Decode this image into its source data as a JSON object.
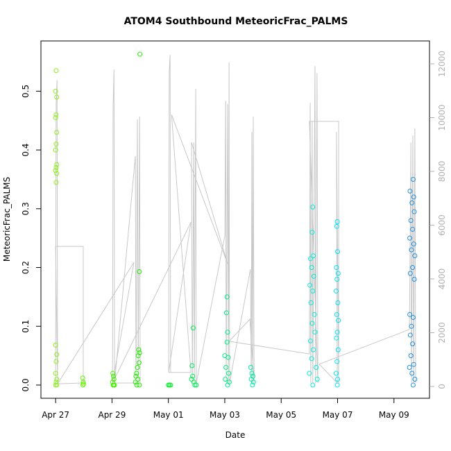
{
  "chart_data": {
    "type": "scatter",
    "title": "ATOM4 Southbound MeteoricFrac_PALMS",
    "x_label": "Date",
    "y_label": "MeteoricFrac_PALMS",
    "xlim": [
      116.48,
      130.26
    ],
    "xticks": [
      {
        "value": 117,
        "label": "Apr 27"
      },
      {
        "value": 119,
        "label": "Apr 29"
      },
      {
        "value": 121,
        "label": "May 01"
      },
      {
        "value": 123,
        "label": "May 03"
      },
      {
        "value": 125,
        "label": "May 05"
      },
      {
        "value": 127,
        "label": "May 07"
      },
      {
        "value": 129,
        "label": "May 09"
      }
    ],
    "ylim": [
      -0.0225,
      0.5855
    ],
    "yticks": [
      {
        "value": 0,
        "label": "0.0"
      },
      0.1,
      0.2,
      0.3,
      0.4,
      0.5
    ],
    "y2lim": [
      -439,
      12852
    ],
    "y2ticks": [
      0,
      2000,
      4000,
      6000,
      8000,
      10000,
      12000
    ],
    "series": [
      {
        "type": "line",
        "axis": "y2",
        "color": "#c8c8c8",
        "x": [
          117.0,
          117.02,
          117.05,
          117.07,
          117.0,
          117.98,
          117.98,
          117.07,
          119.78,
          119.02,
          119.04,
          119.07,
          119.09,
          119.83,
          119.85,
          119.9,
          119.93,
          119.98,
          120.0,
          119.02,
          121.8,
          121.01,
          121.03,
          121.06,
          121.08,
          121.01,
          121.8,
          121.11,
          123.1,
          121.82,
          121.85,
          121.9,
          121.92,
          121.97,
          121.99,
          123.0,
          123.03,
          123.05,
          123.1,
          123.13,
          123.15,
          123.17,
          123.91,
          123.94,
          123.96,
          123.99,
          124.01,
          124.04,
          123.89,
          123.15,
          126.0,
          126.03,
          126.05,
          126.1,
          126.12,
          126.2,
          126.22,
          126.27,
          126.3,
          126.0,
          127.04,
          127.04,
          126.96,
          126.99,
          126.35,
          129.55,
          129.6,
          129.62,
          129.67,
          129.7,
          129.74,
          129.77
        ],
        "values": [
          0,
          10500,
          11400,
          0,
          5210,
          5210,
          130,
          100,
          4620,
          130,
          10420,
          11790,
          130,
          8570,
          130,
          9940,
          130,
          10040,
          130,
          130,
          6110,
          520,
          11710,
          12330,
          520,
          520,
          520,
          10110,
          4570,
          9080,
          130,
          9080,
          130,
          11070,
          130,
          5600,
          10630,
          130,
          10500,
          130,
          12050,
          130,
          4360,
          130,
          9470,
          130,
          10040,
          130,
          2500,
          1680,
          1210,
          10550,
          130,
          9860,
          130,
          11920,
          130,
          11660,
          130,
          9860,
          9860,
          130,
          9470,
          130,
          830,
          2120,
          9080,
          130,
          9340,
          130,
          9600,
          130
        ]
      },
      {
        "type": "scatter",
        "color": "#8fee1f",
        "x": [
          117.02,
          117.0,
          117.04,
          117.02,
          117.0,
          117.04,
          117.02,
          117.0,
          117.04,
          117.02,
          117.0,
          117.04,
          117.02,
          117.0,
          117.04,
          117.02,
          117.0,
          117.04,
          117.02,
          117.0,
          117.04
        ],
        "values": [
          0.535,
          0.5,
          0.49,
          0.46,
          0.455,
          0.43,
          0.41,
          0.4,
          0.375,
          0.37,
          0.365,
          0.36,
          0.345,
          0.068,
          0.052,
          0.04,
          0.02,
          0.01,
          0.005,
          0,
          0
        ]
      },
      {
        "type": "scatter",
        "color": "#66f000",
        "x": [
          117.96,
          117.98,
          117.97,
          117.99
        ],
        "values": [
          0.012,
          0.005,
          0,
          0.002
        ]
      },
      {
        "type": "scatter",
        "color": "#44f000",
        "x": [
          119.03,
          119.05,
          119.07,
          119.02,
          119.04,
          119.06,
          119.09
        ],
        "values": [
          0.02,
          0.015,
          0.01,
          0.005,
          0,
          0,
          0
        ]
      },
      {
        "type": "scatter",
        "color": "#22ee00",
        "x": [
          119.99,
          119.97,
          119.95,
          119.98,
          119.93,
          119.96,
          119.9,
          119.87,
          119.85,
          119.92,
          119.83,
          119.88,
          119.97
        ],
        "values": [
          0.563,
          0.193,
          0.06,
          0.055,
          0.05,
          0.038,
          0.03,
          0.02,
          0.015,
          0.01,
          0.005,
          0,
          0
        ]
      },
      {
        "type": "scatter",
        "color": "#00ee22",
        "x": [
          121.0,
          121.04,
          121.08
        ],
        "values": [
          0,
          0,
          0
        ]
      },
      {
        "type": "scatter",
        "color": "#00ee55",
        "x": [
          121.88,
          121.84,
          121.86,
          121.82,
          121.9,
          121.94,
          121.99
        ],
        "values": [
          0.097,
          0.033,
          0.015,
          0.01,
          0.005,
          0,
          0
        ]
      },
      {
        "type": "scatter",
        "color": "#00ee88",
        "x": [
          123.08,
          123.06,
          123.1,
          123.08,
          123.0,
          123.12,
          123.04,
          123.14,
          123.02,
          123.16,
          123.1
        ],
        "values": [
          0.15,
          0.123,
          0.09,
          0.073,
          0.05,
          0.047,
          0.03,
          0.02,
          0.01,
          0.005,
          0
        ]
      },
      {
        "type": "scatter",
        "color": "#00eeaa",
        "x": [
          123.92,
          123.96,
          124.0,
          123.94,
          124.02,
          123.98
        ],
        "values": [
          0.03,
          0.02,
          0.015,
          0.01,
          0.005,
          0
        ]
      },
      {
        "type": "scatter",
        "color": "#00eedd",
        "x": [
          126.12,
          126.1,
          126.14,
          126.04,
          126.08,
          126.16,
          126.02,
          126.12,
          126.06,
          126.18,
          126.1,
          126.2,
          126.04,
          126.14,
          126.08,
          126.24,
          126.0,
          126.28,
          126.12
        ],
        "values": [
          0.303,
          0.26,
          0.22,
          0.215,
          0.2,
          0.185,
          0.17,
          0.16,
          0.14,
          0.12,
          0.105,
          0.09,
          0.075,
          0.06,
          0.045,
          0.03,
          0.02,
          0.01,
          0
        ]
      },
      {
        "type": "scatter",
        "color": "#00e5f5",
        "x": [
          126.99,
          126.97,
          127.0,
          126.96,
          127.02,
          126.98,
          126.95,
          127.01,
          126.97,
          127.03,
          126.99,
          126.96,
          127.02,
          126.98,
          126.95,
          127.0,
          126.99
        ],
        "values": [
          0.278,
          0.27,
          0.227,
          0.2,
          0.19,
          0.18,
          0.16,
          0.14,
          0.12,
          0.11,
          0.09,
          0.08,
          0.06,
          0.04,
          0.02,
          0.01,
          0
        ]
      },
      {
        "type": "scatter",
        "color": "#2090e0",
        "x": [
          129.68,
          129.57,
          129.7,
          129.64,
          129.72,
          129.6,
          129.66,
          129.56,
          129.7,
          129.62,
          129.74,
          129.66,
          129.58,
          129.72,
          129.56,
          129.68,
          129.62,
          129.58,
          129.66,
          129.6,
          129.7,
          129.55,
          129.64,
          129.74,
          129.68
        ],
        "values": [
          0.35,
          0.33,
          0.32,
          0.31,
          0.295,
          0.28,
          0.265,
          0.25,
          0.24,
          0.23,
          0.22,
          0.2,
          0.19,
          0.18,
          0.12,
          0.115,
          0.1,
          0.085,
          0.07,
          0.05,
          0.035,
          0.03,
          0.02,
          0.01,
          0
        ]
      }
    ]
  }
}
